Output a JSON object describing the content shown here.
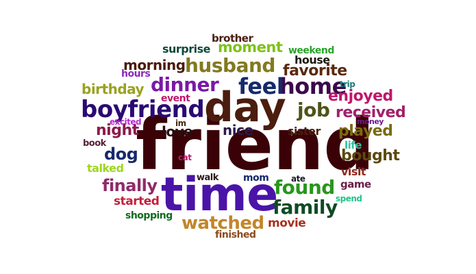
{
  "words": [
    {
      "text": "friend",
      "color": "#3a0207"
    },
    {
      "text": "time",
      "color": "#4a14a8"
    },
    {
      "text": "day",
      "color": "#4b1d0e"
    },
    {
      "text": "boyfriend",
      "color": "#2a0a72"
    },
    {
      "text": "home",
      "color": "#3a0a4a"
    },
    {
      "text": "feel",
      "color": "#16296b"
    },
    {
      "text": "husband",
      "color": "#827a1f"
    },
    {
      "text": "dinner",
      "color": "#7a1aa6"
    },
    {
      "text": "family",
      "color": "#0e4a25"
    },
    {
      "text": "found",
      "color": "#28961c"
    },
    {
      "text": "watched",
      "color": "#c3862a"
    },
    {
      "text": "job",
      "color": "#4e5418"
    },
    {
      "text": "favorite",
      "color": "#5a2a0e"
    },
    {
      "text": "received",
      "color": "#a2206a"
    },
    {
      "text": "moment",
      "color": "#7ec21a"
    },
    {
      "text": "birthday",
      "color": "#9aa21f"
    },
    {
      "text": "morning",
      "color": "#4a1a0e"
    },
    {
      "text": "night",
      "color": "#8c1a4a"
    },
    {
      "text": "dog",
      "color": "#16296b"
    },
    {
      "text": "finally",
      "color": "#8e2a6a"
    },
    {
      "text": "enjoyed",
      "color": "#c0166a"
    },
    {
      "text": "played",
      "color": "#7a6a12"
    },
    {
      "text": "bought",
      "color": "#5a4a0e"
    },
    {
      "text": "love",
      "color": "#2a0e0e"
    },
    {
      "text": "nice",
      "color": "#2a1a4a"
    },
    {
      "text": "started",
      "color": "#c41e3a"
    },
    {
      "text": "movie",
      "color": "#a8321e"
    },
    {
      "text": "surprise",
      "color": "#0e4a3a"
    },
    {
      "text": "sister",
      "color": "#4a1e12"
    },
    {
      "text": "house",
      "color": "#1a1a0e"
    },
    {
      "text": "brother",
      "color": "#4a1e12"
    },
    {
      "text": "weekend",
      "color": "#28a428"
    },
    {
      "text": "hours",
      "color": "#8a2ab8"
    },
    {
      "text": "event",
      "color": "#c0166a"
    },
    {
      "text": "talked",
      "color": "#9ed61e"
    },
    {
      "text": "book",
      "color": "#5a1e3a"
    },
    {
      "text": "excited",
      "color": "#b82ad0"
    },
    {
      "text": "life",
      "color": "#2ac6a0"
    },
    {
      "text": "visit",
      "color": "#8e2a1e"
    },
    {
      "text": "game",
      "color": "#6a1e4a"
    },
    {
      "text": "shopping",
      "color": "#0e6a1e"
    },
    {
      "text": "finished",
      "color": "#8a4a1e"
    },
    {
      "text": "walk",
      "color": "#2a1a1a"
    },
    {
      "text": "mom",
      "color": "#16296b"
    },
    {
      "text": "ate",
      "color": "#1a1a2a"
    },
    {
      "text": "im",
      "color": "#4a2a0e"
    },
    {
      "text": "cat",
      "color": "#c0166a"
    },
    {
      "text": "trip",
      "color": "#1e7a7a"
    },
    {
      "text": "money",
      "color": "#6a1e8a"
    },
    {
      "text": "spend",
      "color": "#1ec68a"
    }
  ]
}
